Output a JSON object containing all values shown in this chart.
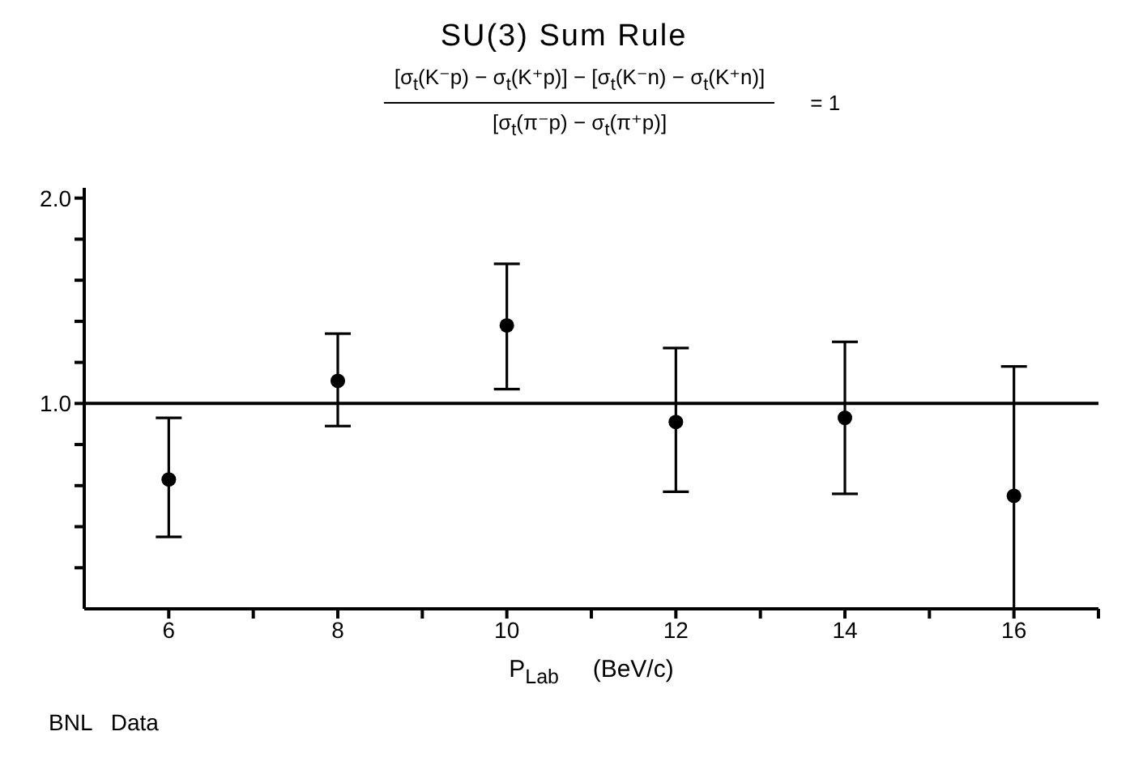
{
  "chart_data": {
    "type": "scatter",
    "title": "SU(3)  Sum  Rule",
    "subtitle": "[σ$_{t}$(K⁻p) − σ$_{t}$(K⁺p)] − [σ$_{t}$(K⁻n) − σ$_{t}$(K⁺n)]",
    "xlabel": "P$_{Lab}$     (BeV/c)",
    "annotations": [
      "[σ$_{t}$(π⁻p) − σ$_{t}$(π⁺p)]",
      "= 1",
      "BNL   Data"
    ],
    "x": [
      6,
      8,
      10,
      12,
      14,
      16
    ],
    "series": [
      {
        "color": "#000000",
        "values": [
          0.63,
          1.11,
          1.38,
          0.91,
          0.93,
          0.55
        ],
        "errors": [
          [
            0.35,
            0.93
          ],
          [
            0.89,
            1.34
          ],
          [
            1.07,
            1.68
          ],
          [
            0.57,
            1.27
          ],
          [
            0.56,
            1.3
          ],
          [
            0,
            1.18
          ]
        ]
      }
    ],
    "xlim": [
      5,
      17
    ],
    "xticks": [
      6,
      {
        "value": 7,
        "label": null
      },
      8,
      {
        "value": 9,
        "label": null
      },
      10,
      {
        "value": 11,
        "label": null
      },
      12,
      {
        "value": 13,
        "label": null
      },
      14,
      {
        "value": 15,
        "label": null
      },
      16,
      {
        "value": 17,
        "label": null
      }
    ],
    "ylim": [
      0,
      2.05
    ],
    "yticks": [
      {
        "value": 0.2,
        "label": null
      },
      {
        "value": 0.4,
        "label": null
      },
      {
        "value": 0.6,
        "label": null
      },
      {
        "value": 0.8,
        "label": null
      },
      {
        "value": 1,
        "label": "1.0"
      },
      {
        "value": 1.2,
        "label": null
      },
      {
        "value": 1.4,
        "label": null
      },
      {
        "value": 1.6,
        "label": null
      },
      {
        "value": 1.8,
        "label": null
      },
      {
        "value": 2,
        "label": "2.0"
      }
    ],
    "ref_lines": [
      {
        "axis": "y",
        "value": 1,
        "color": "#000000"
      }
    ],
    "marker": "circle",
    "grid": false,
    "legend": false
  }
}
